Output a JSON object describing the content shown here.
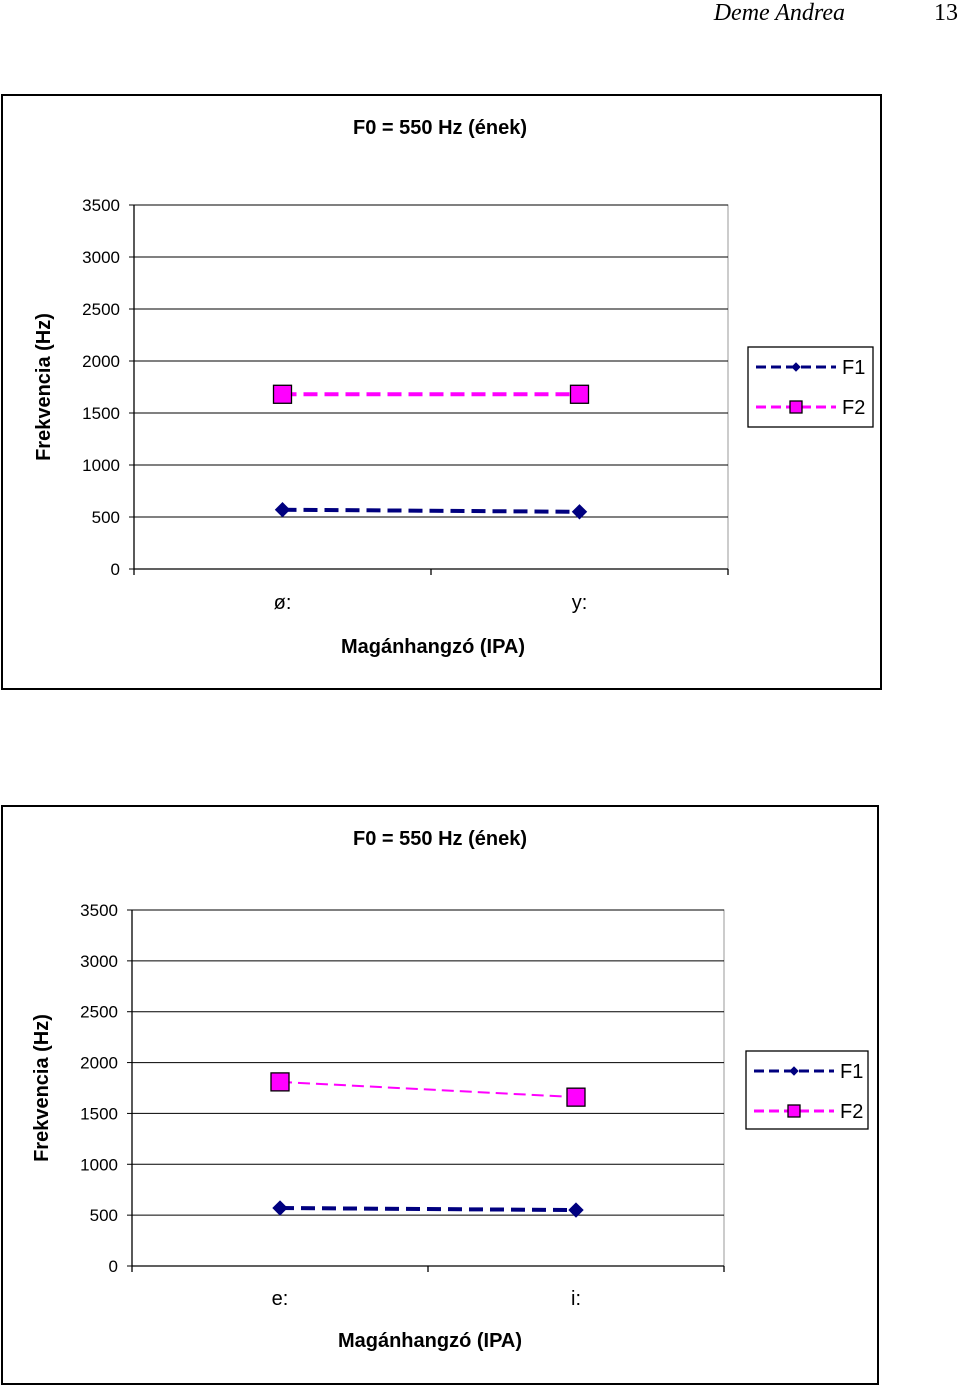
{
  "header": {
    "author": "Deme Andrea",
    "page_number": "13"
  },
  "chart_data": [
    {
      "type": "line",
      "title": "F0 = 550 Hz (ének)",
      "xlabel": "Magánhangzó (IPA)",
      "ylabel": "Frekvencia (Hz)",
      "categories": [
        "ø:",
        "y:"
      ],
      "ylim": [
        0,
        3500
      ],
      "yticks": [
        "0",
        "500",
        "1000",
        "1500",
        "2000",
        "2500",
        "3000",
        "3500"
      ],
      "grid": "horizontal",
      "legend_position": "right",
      "series": [
        {
          "name": "F1",
          "values": [
            570,
            550
          ],
          "color": "#00007f",
          "marker": "diamond"
        },
        {
          "name": "F2",
          "values": [
            1680,
            1680
          ],
          "color": "#ff00ff",
          "marker": "square"
        }
      ]
    },
    {
      "type": "line",
      "title": "F0 = 550 Hz (ének)",
      "xlabel": "Magánhangzó (IPA)",
      "ylabel": "Frekvencia (Hz)",
      "categories": [
        "e:",
        "i:"
      ],
      "ylim": [
        0,
        3500
      ],
      "yticks": [
        "0",
        "500",
        "1000",
        "1500",
        "2000",
        "2500",
        "3000",
        "3500"
      ],
      "grid": "horizontal",
      "legend_position": "right",
      "series": [
        {
          "name": "F1",
          "values": [
            570,
            550
          ],
          "color": "#00007f",
          "marker": "diamond"
        },
        {
          "name": "F2",
          "values": [
            1810,
            1660
          ],
          "color": "#ff00ff",
          "marker": "square"
        }
      ]
    }
  ]
}
